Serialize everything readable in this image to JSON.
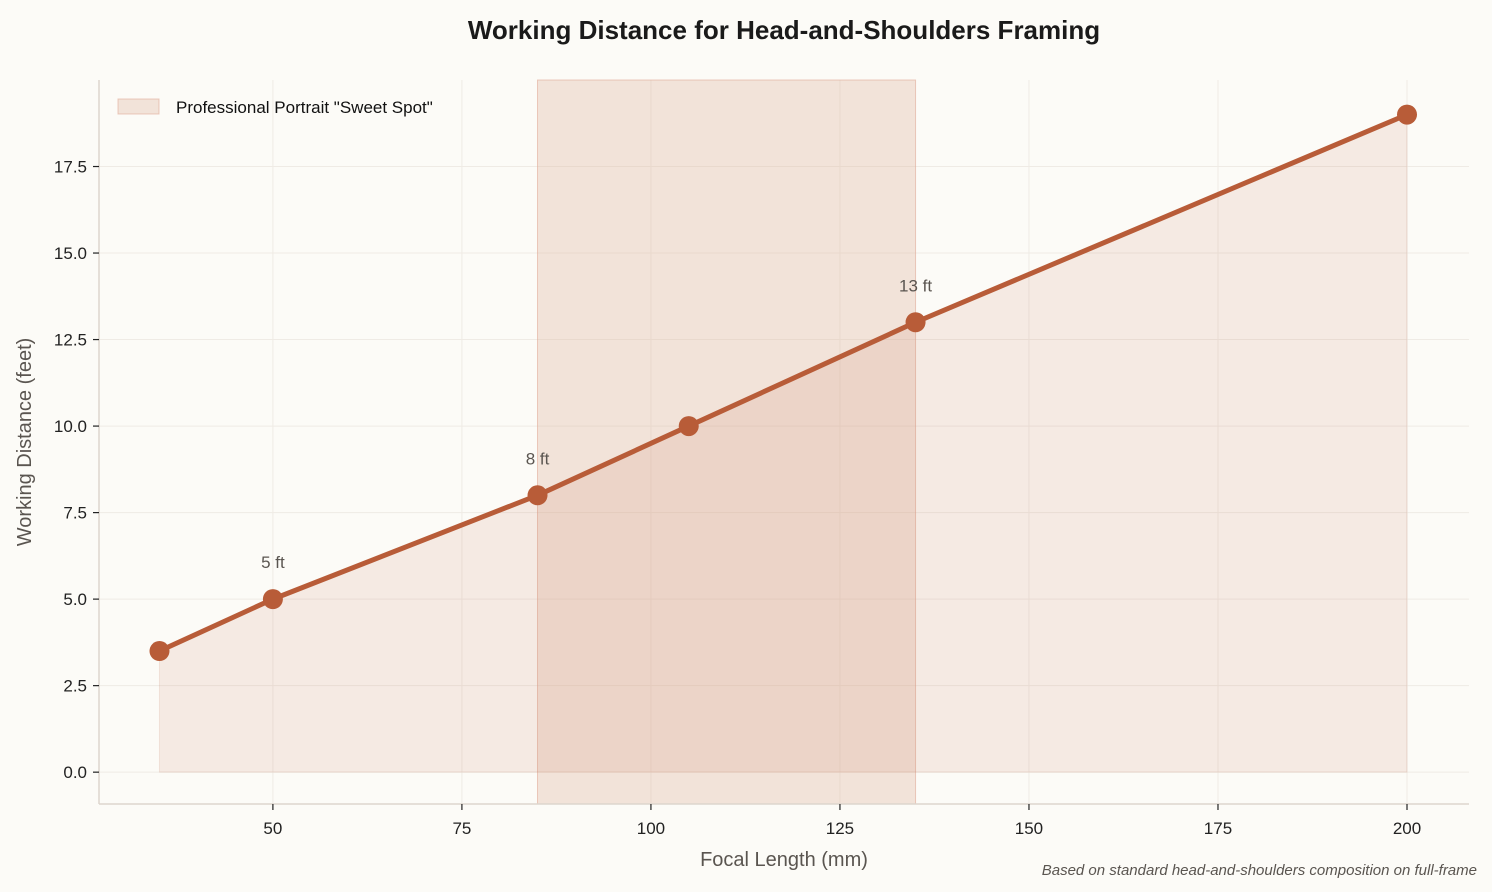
{
  "chart_data": {
    "type": "line",
    "title": "Working Distance for Head-and-Shoulders Framing",
    "xlabel": "Focal Length (mm)",
    "ylabel": "Working Distance (feet)",
    "x": [
      35,
      50,
      85,
      105,
      135,
      200
    ],
    "series": [
      {
        "values": [
          3.5,
          5,
          8,
          10,
          13,
          19
        ]
      }
    ],
    "xlim": [
      27,
      208.2
    ],
    "ylim": [
      -0.92,
      20
    ],
    "xticks": [
      50,
      75,
      100,
      125,
      150,
      175,
      200
    ],
    "xtick_labels": [
      "50",
      "75",
      "100",
      "125",
      "150",
      "175",
      "200"
    ],
    "yticks": [
      0,
      2.5,
      5,
      7.5,
      10,
      12.5,
      15,
      17.5
    ],
    "ytick_labels": [
      "0.0",
      "2.5",
      "5.0",
      "7.5",
      "10.0",
      "12.5",
      "15.0",
      "17.5"
    ],
    "grid": true,
    "span": {
      "x_start": 85,
      "x_end": 135,
      "label": "Professional Portrait \"Sweet Spot\""
    },
    "legend_placement": "top-left",
    "annotations": [
      {
        "x": 50,
        "y": 5,
        "text": "5 ft"
      },
      {
        "x": 85,
        "y": 8,
        "text": "8 ft"
      },
      {
        "x": 135,
        "y": 13,
        "text": "13 ft"
      }
    ],
    "footnote": "Based on standard head-and-shoulders composition on full-frame",
    "colors": {
      "line": "#b85c38",
      "area_fill": "#b85c38",
      "span_fill": "#e0b8a0",
      "background": "#fcfbf7",
      "grid": "#efebe5",
      "axis": "#ddd6ce"
    }
  }
}
